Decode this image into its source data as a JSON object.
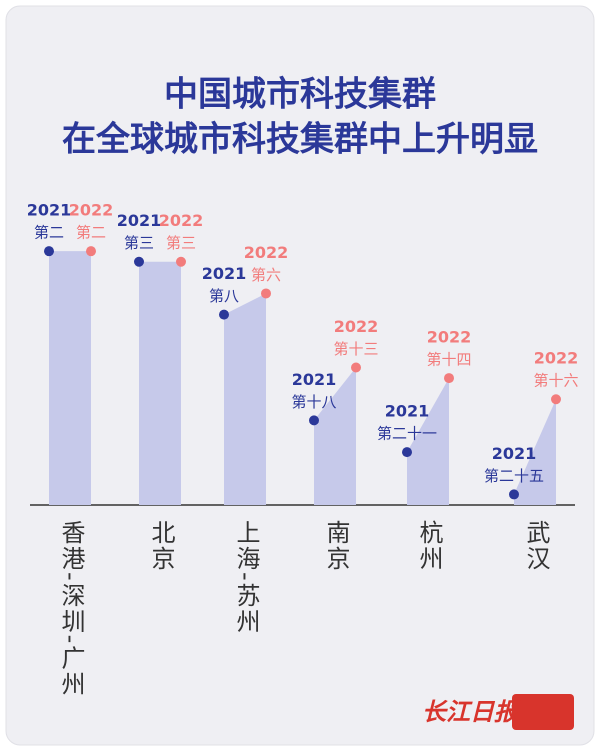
{
  "chart_data": {
    "type": "rank-area",
    "title": "中国城市科技集群",
    "subtitle": "在全球城市科技集群中上升明显",
    "categories": [
      "香港-深圳-广州",
      "北京",
      "上海-苏州",
      "南京",
      "杭州",
      "武汉"
    ],
    "series": [
      {
        "name": "2021",
        "color": "#2b3899",
        "values": [
          2,
          3,
          8,
          18,
          21,
          25
        ],
        "value_labels": [
          "第二",
          "第三",
          "第八",
          "第十八",
          "第二十一",
          "第二十五"
        ]
      },
      {
        "name": "2022",
        "color": "#f27c7c",
        "values": [
          2,
          3,
          6,
          13,
          14,
          16
        ],
        "value_labels": [
          "第二",
          "第三",
          "第六",
          "第十三",
          "第十四",
          "第十六"
        ]
      }
    ],
    "ylim": [
      0,
      26
    ],
    "y_inverted": true,
    "area_color": "#c6c9ea",
    "source": "长江日报"
  }
}
